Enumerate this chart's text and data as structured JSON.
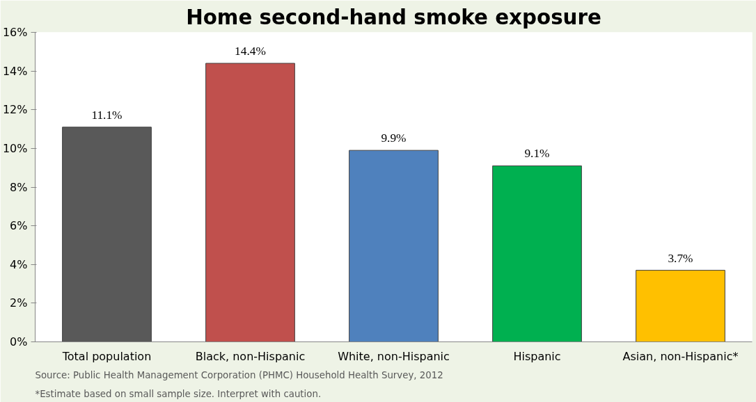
{
  "chart_data": {
    "type": "bar",
    "title": "Home second-hand smoke exposure",
    "categories": [
      "Total population",
      "Black, non-Hispanic",
      "White, non-Hispanic",
      "Hispanic",
      "Asian, non-Hispanic*"
    ],
    "values": [
      11.1,
      14.4,
      9.9,
      9.1,
      3.7
    ],
    "colors": [
      "#595959",
      "#c0504d",
      "#4f81bd",
      "#00b050",
      "#ffc000"
    ],
    "value_labels": [
      "11.1%",
      "14.4%",
      "9.9%",
      "9.1%",
      "3.7%"
    ],
    "ylim": [
      0,
      16
    ],
    "yticks": [
      {
        "value": 0,
        "label": "0%"
      },
      {
        "value": 2,
        "label": "2%"
      },
      {
        "value": 4,
        "label": "4%"
      },
      {
        "value": 6,
        "label": "6%"
      },
      {
        "value": 8,
        "label": "8%"
      },
      {
        "value": 10,
        "label": "10%"
      },
      {
        "value": 12,
        "label": "12%"
      },
      {
        "value": 14,
        "label": "14%"
      },
      {
        "value": 16,
        "label": "16%"
      }
    ],
    "grid": false,
    "annotations": [
      "Source: Public Health Management Corporation (PHMC) Household Health Survey, 2012",
      "*Estimate based on small sample size. Interpret with caution."
    ]
  }
}
